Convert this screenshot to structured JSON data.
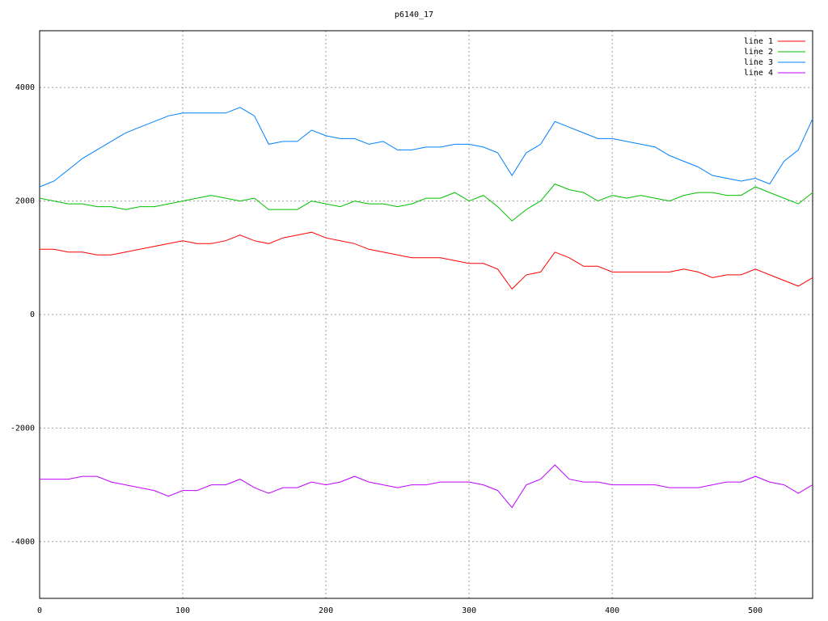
{
  "chart_data": {
    "type": "line",
    "title": "p6140_17",
    "x": [
      0,
      10,
      20,
      30,
      40,
      50,
      60,
      70,
      80,
      90,
      100,
      110,
      120,
      130,
      140,
      150,
      160,
      170,
      180,
      190,
      200,
      210,
      220,
      230,
      240,
      250,
      260,
      270,
      280,
      290,
      300,
      310,
      320,
      330,
      340,
      350,
      360,
      370,
      380,
      390,
      400,
      410,
      420,
      430,
      440,
      450,
      460,
      470,
      480,
      490,
      500,
      510,
      520,
      530,
      540
    ],
    "series": [
      {
        "name": "line 1",
        "color": "#ff0000",
        "values": [
          1150,
          1150,
          1100,
          1100,
          1050,
          1050,
          1100,
          1150,
          1200,
          1250,
          1300,
          1250,
          1250,
          1300,
          1400,
          1300,
          1250,
          1350,
          1400,
          1450,
          1350,
          1300,
          1250,
          1150,
          1100,
          1050,
          1000,
          1000,
          1000,
          950,
          900,
          900,
          800,
          450,
          700,
          750,
          1100,
          1000,
          850,
          850,
          750,
          750,
          750,
          750,
          750,
          800,
          750,
          650,
          700,
          700,
          800,
          700,
          600,
          500,
          650
        ]
      },
      {
        "name": "line 2",
        "color": "#00c000",
        "values": [
          2050,
          2000,
          1950,
          1950,
          1900,
          1900,
          1850,
          1900,
          1900,
          1950,
          2000,
          2050,
          2100,
          2050,
          2000,
          2050,
          1850,
          1850,
          1850,
          2000,
          1950,
          1900,
          2000,
          1950,
          1950,
          1900,
          1950,
          2050,
          2050,
          2150,
          2000,
          2100,
          1900,
          1650,
          1850,
          2000,
          2300,
          2200,
          2150,
          2000,
          2100,
          2050,
          2100,
          2050,
          2000,
          2100,
          2150,
          2150,
          2100,
          2100,
          2250,
          2150,
          2050,
          1950,
          2150
        ]
      },
      {
        "name": "line 3",
        "color": "#0080ff",
        "values": [
          2250,
          2350,
          2550,
          2750,
          2900,
          3050,
          3200,
          3300,
          3400,
          3500,
          3550,
          3550,
          3550,
          3550,
          3650,
          3500,
          3000,
          3050,
          3050,
          3250,
          3150,
          3100,
          3100,
          3000,
          3050,
          2900,
          2900,
          2950,
          2950,
          3000,
          3000,
          2950,
          2850,
          2450,
          2850,
          3000,
          3400,
          3300,
          3200,
          3100,
          3100,
          3050,
          3000,
          2950,
          2800,
          2700,
          2600,
          2450,
          2400,
          2350,
          2400,
          2300,
          2700,
          2900,
          3450
        ]
      },
      {
        "name": "line 4",
        "color": "#c000ff",
        "values": [
          -2900,
          -2900,
          -2900,
          -2850,
          -2850,
          -2950,
          -3000,
          -3050,
          -3100,
          -3200,
          -3100,
          -3100,
          -3000,
          -3000,
          -2900,
          -3050,
          -3150,
          -3050,
          -3050,
          -2950,
          -3000,
          -2950,
          -2850,
          -2950,
          -3000,
          -3050,
          -3000,
          -3000,
          -2950,
          -2950,
          -2950,
          -3000,
          -3100,
          -3400,
          -3000,
          -2900,
          -2650,
          -2900,
          -2950,
          -2950,
          -3000,
          -3000,
          -3000,
          -3000,
          -3050,
          -3050,
          -3050,
          -3000,
          -2950,
          -2950,
          -2850,
          -2950,
          -3000,
          -3150,
          -3000
        ]
      }
    ],
    "xlim": [
      0,
      540
    ],
    "ylim": [
      -5000,
      5000
    ],
    "xticks": [
      0,
      100,
      200,
      300,
      400,
      500
    ],
    "yticks": [
      -4000,
      -2000,
      0,
      2000,
      4000
    ],
    "grid": true,
    "legend": "top-right"
  }
}
